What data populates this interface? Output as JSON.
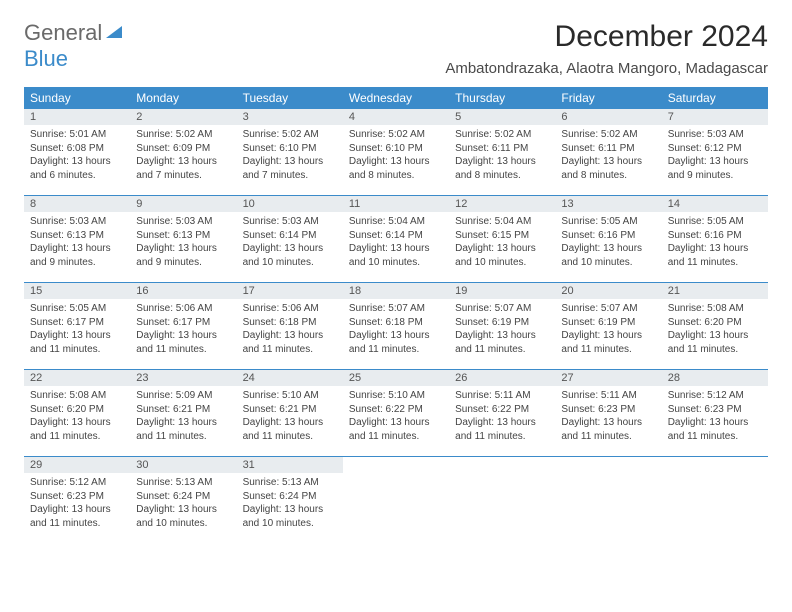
{
  "brand": {
    "part1": "General",
    "part2": "Blue"
  },
  "title": "December 2024",
  "location": "Ambatondrazaka, Alaotra Mangoro, Madagascar",
  "colors": {
    "header_bg": "#3b8bca",
    "header_text": "#ffffff",
    "daynum_bg": "#e8ecef",
    "body_text": "#444444",
    "rule": "#3b8bca"
  },
  "dow": [
    "Sunday",
    "Monday",
    "Tuesday",
    "Wednesday",
    "Thursday",
    "Friday",
    "Saturday"
  ],
  "days": [
    {
      "n": "1",
      "sr": "5:01 AM",
      "ss": "6:08 PM",
      "dl": "13 hours and 6 minutes."
    },
    {
      "n": "2",
      "sr": "5:02 AM",
      "ss": "6:09 PM",
      "dl": "13 hours and 7 minutes."
    },
    {
      "n": "3",
      "sr": "5:02 AM",
      "ss": "6:10 PM",
      "dl": "13 hours and 7 minutes."
    },
    {
      "n": "4",
      "sr": "5:02 AM",
      "ss": "6:10 PM",
      "dl": "13 hours and 8 minutes."
    },
    {
      "n": "5",
      "sr": "5:02 AM",
      "ss": "6:11 PM",
      "dl": "13 hours and 8 minutes."
    },
    {
      "n": "6",
      "sr": "5:02 AM",
      "ss": "6:11 PM",
      "dl": "13 hours and 8 minutes."
    },
    {
      "n": "7",
      "sr": "5:03 AM",
      "ss": "6:12 PM",
      "dl": "13 hours and 9 minutes."
    },
    {
      "n": "8",
      "sr": "5:03 AM",
      "ss": "6:13 PM",
      "dl": "13 hours and 9 minutes."
    },
    {
      "n": "9",
      "sr": "5:03 AM",
      "ss": "6:13 PM",
      "dl": "13 hours and 9 minutes."
    },
    {
      "n": "10",
      "sr": "5:03 AM",
      "ss": "6:14 PM",
      "dl": "13 hours and 10 minutes."
    },
    {
      "n": "11",
      "sr": "5:04 AM",
      "ss": "6:14 PM",
      "dl": "13 hours and 10 minutes."
    },
    {
      "n": "12",
      "sr": "5:04 AM",
      "ss": "6:15 PM",
      "dl": "13 hours and 10 minutes."
    },
    {
      "n": "13",
      "sr": "5:05 AM",
      "ss": "6:16 PM",
      "dl": "13 hours and 10 minutes."
    },
    {
      "n": "14",
      "sr": "5:05 AM",
      "ss": "6:16 PM",
      "dl": "13 hours and 11 minutes."
    },
    {
      "n": "15",
      "sr": "5:05 AM",
      "ss": "6:17 PM",
      "dl": "13 hours and 11 minutes."
    },
    {
      "n": "16",
      "sr": "5:06 AM",
      "ss": "6:17 PM",
      "dl": "13 hours and 11 minutes."
    },
    {
      "n": "17",
      "sr": "5:06 AM",
      "ss": "6:18 PM",
      "dl": "13 hours and 11 minutes."
    },
    {
      "n": "18",
      "sr": "5:07 AM",
      "ss": "6:18 PM",
      "dl": "13 hours and 11 minutes."
    },
    {
      "n": "19",
      "sr": "5:07 AM",
      "ss": "6:19 PM",
      "dl": "13 hours and 11 minutes."
    },
    {
      "n": "20",
      "sr": "5:07 AM",
      "ss": "6:19 PM",
      "dl": "13 hours and 11 minutes."
    },
    {
      "n": "21",
      "sr": "5:08 AM",
      "ss": "6:20 PM",
      "dl": "13 hours and 11 minutes."
    },
    {
      "n": "22",
      "sr": "5:08 AM",
      "ss": "6:20 PM",
      "dl": "13 hours and 11 minutes."
    },
    {
      "n": "23",
      "sr": "5:09 AM",
      "ss": "6:21 PM",
      "dl": "13 hours and 11 minutes."
    },
    {
      "n": "24",
      "sr": "5:10 AM",
      "ss": "6:21 PM",
      "dl": "13 hours and 11 minutes."
    },
    {
      "n": "25",
      "sr": "5:10 AM",
      "ss": "6:22 PM",
      "dl": "13 hours and 11 minutes."
    },
    {
      "n": "26",
      "sr": "5:11 AM",
      "ss": "6:22 PM",
      "dl": "13 hours and 11 minutes."
    },
    {
      "n": "27",
      "sr": "5:11 AM",
      "ss": "6:23 PM",
      "dl": "13 hours and 11 minutes."
    },
    {
      "n": "28",
      "sr": "5:12 AM",
      "ss": "6:23 PM",
      "dl": "13 hours and 11 minutes."
    },
    {
      "n": "29",
      "sr": "5:12 AM",
      "ss": "6:23 PM",
      "dl": "13 hours and 11 minutes."
    },
    {
      "n": "30",
      "sr": "5:13 AM",
      "ss": "6:24 PM",
      "dl": "13 hours and 10 minutes."
    },
    {
      "n": "31",
      "sr": "5:13 AM",
      "ss": "6:24 PM",
      "dl": "13 hours and 10 minutes."
    }
  ],
  "labels": {
    "sunrise": "Sunrise: ",
    "sunset": "Sunset: ",
    "daylight": "Daylight: "
  }
}
